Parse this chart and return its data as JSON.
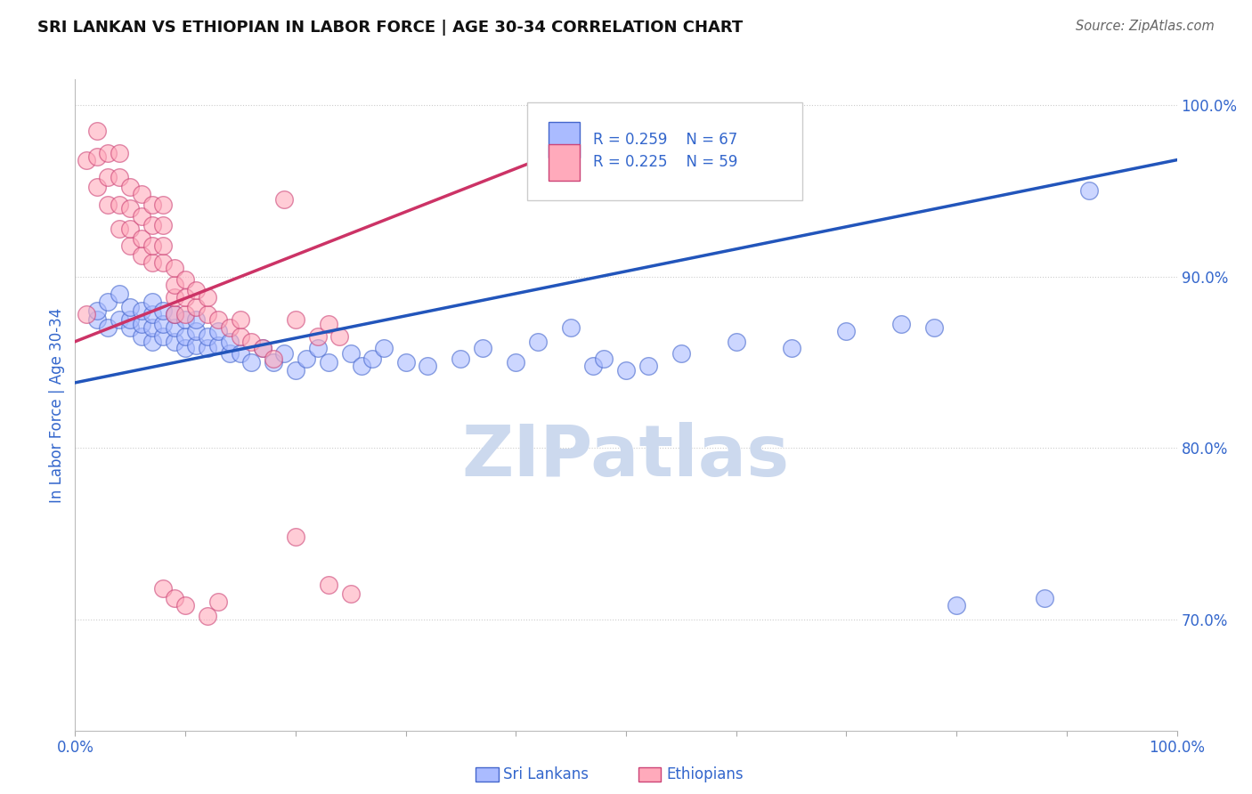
{
  "title": "SRI LANKAN VS ETHIOPIAN IN LABOR FORCE | AGE 30-34 CORRELATION CHART",
  "source": "Source: ZipAtlas.com",
  "ylabel": "In Labor Force | Age 30-34",
  "y_tick_labels": [
    "70.0%",
    "80.0%",
    "90.0%",
    "100.0%"
  ],
  "y_tick_values": [
    0.7,
    0.8,
    0.9,
    1.0
  ],
  "x_lim": [
    0.0,
    1.0
  ],
  "y_lim": [
    0.635,
    1.015
  ],
  "blue_r": "R = 0.259",
  "blue_n": "N = 67",
  "pink_r": "R = 0.225",
  "pink_n": "N = 59",
  "legend_label_blue": "Sri Lankans",
  "legend_label_pink": "Ethiopians",
  "blue_fill": "#aabbff",
  "pink_fill": "#ffaabb",
  "blue_edge": "#4466cc",
  "pink_edge": "#cc4477",
  "blue_line_color": "#2255bb",
  "pink_line_color": "#cc3366",
  "title_color": "#111111",
  "axis_label_color": "#3366cc",
  "watermark_text": "ZIPatlas",
  "watermark_color": "#ccd9ee",
  "blue_scatter_x": [
    0.02,
    0.02,
    0.03,
    0.03,
    0.04,
    0.04,
    0.05,
    0.05,
    0.05,
    0.06,
    0.06,
    0.06,
    0.07,
    0.07,
    0.07,
    0.07,
    0.08,
    0.08,
    0.08,
    0.09,
    0.09,
    0.09,
    0.1,
    0.1,
    0.1,
    0.11,
    0.11,
    0.11,
    0.12,
    0.12,
    0.13,
    0.13,
    0.14,
    0.14,
    0.15,
    0.16,
    0.17,
    0.18,
    0.19,
    0.2,
    0.21,
    0.22,
    0.23,
    0.25,
    0.26,
    0.27,
    0.28,
    0.3,
    0.32,
    0.35,
    0.37,
    0.4,
    0.42,
    0.45,
    0.47,
    0.48,
    0.5,
    0.52,
    0.55,
    0.6,
    0.65,
    0.7,
    0.75,
    0.78,
    0.8,
    0.88,
    0.92
  ],
  "blue_scatter_y": [
    0.875,
    0.88,
    0.87,
    0.885,
    0.875,
    0.89,
    0.87,
    0.875,
    0.882,
    0.865,
    0.872,
    0.88,
    0.862,
    0.87,
    0.878,
    0.885,
    0.865,
    0.872,
    0.88,
    0.862,
    0.87,
    0.878,
    0.858,
    0.865,
    0.875,
    0.86,
    0.868,
    0.875,
    0.858,
    0.865,
    0.86,
    0.868,
    0.855,
    0.862,
    0.855,
    0.85,
    0.858,
    0.85,
    0.855,
    0.845,
    0.852,
    0.858,
    0.85,
    0.855,
    0.848,
    0.852,
    0.858,
    0.85,
    0.848,
    0.852,
    0.858,
    0.85,
    0.862,
    0.87,
    0.848,
    0.852,
    0.845,
    0.848,
    0.855,
    0.862,
    0.858,
    0.868,
    0.872,
    0.87,
    0.708,
    0.712,
    0.95
  ],
  "pink_scatter_x": [
    0.01,
    0.01,
    0.02,
    0.02,
    0.02,
    0.03,
    0.03,
    0.03,
    0.04,
    0.04,
    0.04,
    0.04,
    0.05,
    0.05,
    0.05,
    0.05,
    0.06,
    0.06,
    0.06,
    0.06,
    0.07,
    0.07,
    0.07,
    0.07,
    0.08,
    0.08,
    0.08,
    0.08,
    0.09,
    0.09,
    0.09,
    0.09,
    0.1,
    0.1,
    0.1,
    0.11,
    0.11,
    0.12,
    0.12,
    0.13,
    0.14,
    0.15,
    0.15,
    0.16,
    0.17,
    0.18,
    0.19,
    0.2,
    0.22,
    0.23,
    0.24,
    0.08,
    0.09,
    0.1,
    0.12,
    0.13,
    0.2,
    0.23,
    0.25
  ],
  "pink_scatter_y": [
    0.878,
    0.968,
    0.952,
    0.97,
    0.985,
    0.942,
    0.958,
    0.972,
    0.928,
    0.942,
    0.958,
    0.972,
    0.918,
    0.928,
    0.94,
    0.952,
    0.912,
    0.922,
    0.935,
    0.948,
    0.908,
    0.918,
    0.93,
    0.942,
    0.908,
    0.918,
    0.93,
    0.942,
    0.878,
    0.888,
    0.895,
    0.905,
    0.878,
    0.888,
    0.898,
    0.882,
    0.892,
    0.878,
    0.888,
    0.875,
    0.87,
    0.865,
    0.875,
    0.862,
    0.858,
    0.852,
    0.945,
    0.875,
    0.865,
    0.872,
    0.865,
    0.718,
    0.712,
    0.708,
    0.702,
    0.71,
    0.748,
    0.72,
    0.715
  ],
  "blue_line_x": [
    0.0,
    1.0
  ],
  "blue_line_y": [
    0.838,
    0.968
  ],
  "pink_line_x": [
    0.0,
    0.42
  ],
  "pink_line_y": [
    0.862,
    0.968
  ],
  "grid_color": "#cccccc",
  "background_color": "#ffffff"
}
